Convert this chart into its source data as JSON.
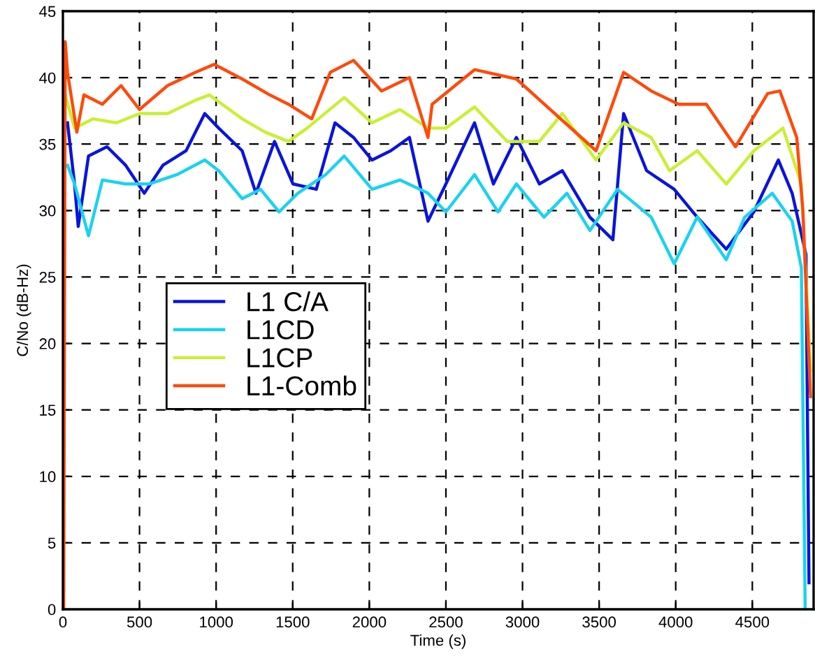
{
  "chart_data": {
    "type": "line",
    "xlabel": "Time (s)",
    "ylabel": "C/No (dB-Hz)",
    "xlim": [
      0,
      4900
    ],
    "ylim": [
      0,
      45
    ],
    "xticks": [
      0,
      500,
      1000,
      1500,
      2000,
      2500,
      3000,
      3500,
      4000,
      4500
    ],
    "yticks": [
      0,
      5,
      10,
      15,
      20,
      25,
      30,
      35,
      40,
      45
    ],
    "grid": true,
    "legend": "left",
    "line_style": "solid",
    "marker": "none",
    "series": [
      {
        "name": "L1 C/A",
        "color": "#0a14dc",
        "x": [
          30,
          76,
          100,
          167,
          288,
          410,
          531,
          652,
          804,
          926,
          1017,
          1170,
          1260,
          1381,
          1502,
          1654,
          1776,
          1897,
          2018,
          2140,
          2262,
          2383,
          2500,
          2687,
          2810,
          2960,
          3110,
          3260,
          3440,
          3590,
          3660,
          3810,
          3990,
          4140,
          4330,
          4510,
          4670,
          4760,
          4850,
          4870
        ],
        "values": [
          36.6,
          32,
          28.8,
          34.1,
          34.8,
          33.4,
          31.3,
          33.4,
          34.5,
          37.3,
          36.2,
          34.5,
          31.3,
          35.2,
          32,
          31.6,
          36.6,
          35.5,
          33.8,
          34.5,
          35.5,
          29.2,
          32,
          36.6,
          32,
          35.5,
          32,
          33,
          29.5,
          27.8,
          37.3,
          33,
          31.6,
          29.5,
          27.1,
          29.9,
          33.8,
          31.3,
          26.7,
          2
        ]
      },
      {
        "name": "L1CD",
        "color": "#1ad2f0",
        "x": [
          30,
          76,
          167,
          258,
          410,
          562,
          744,
          926,
          1017,
          1170,
          1290,
          1411,
          1533,
          1715,
          1836,
          2018,
          2200,
          2383,
          2500,
          2687,
          2840,
          2960,
          3140,
          3290,
          3440,
          3620,
          3840,
          3990,
          4140,
          4330,
          4450,
          4630,
          4760,
          4820,
          4845
        ],
        "values": [
          33.4,
          32,
          28.1,
          32.3,
          32,
          32,
          32.7,
          33.8,
          33,
          30.9,
          31.6,
          29.9,
          31.3,
          32.7,
          34.1,
          31.6,
          32.3,
          31.3,
          29.9,
          32.7,
          29.9,
          32,
          29.5,
          31.3,
          28.5,
          31.6,
          29.5,
          26,
          29.5,
          26.3,
          29.5,
          31.3,
          29.2,
          25.7,
          0
        ]
      },
      {
        "name": "L1CP",
        "color": "#c8f032",
        "x": [
          15,
          76,
          197,
          349,
          500,
          683,
          865,
          956,
          1170,
          1320,
          1472,
          1594,
          1836,
          2018,
          2200,
          2383,
          2500,
          2687,
          2900,
          3110,
          3260,
          3480,
          3660,
          3840,
          3960,
          4140,
          4330,
          4510,
          4700,
          4820,
          4880
        ],
        "values": [
          38.7,
          36.2,
          36.9,
          36.6,
          37.3,
          37.3,
          38.3,
          38.7,
          36.9,
          35.9,
          35.2,
          36.2,
          38.5,
          36.6,
          37.6,
          36.2,
          36.2,
          37.8,
          35.2,
          35.2,
          37.3,
          33.8,
          36.6,
          35.5,
          33,
          34.5,
          32,
          34.5,
          36.2,
          32,
          18
        ]
      },
      {
        "name": "L1-Comb",
        "color": "#ff4a0a",
        "x": [
          5,
          15,
          30,
          91,
          137,
          258,
          380,
          500,
          683,
          865,
          987,
          1170,
          1350,
          1472,
          1624,
          1745,
          1897,
          2080,
          2262,
          2383,
          2410,
          2687,
          2960,
          3480,
          3660,
          3840,
          4020,
          4200,
          4390,
          4600,
          4680,
          4790,
          4830,
          4880
        ],
        "values": [
          0,
          42.7,
          40.4,
          35.9,
          38.7,
          38,
          39.4,
          37.6,
          39.4,
          40.4,
          41,
          39.9,
          38.7,
          38,
          36.9,
          40.4,
          41.3,
          39,
          40,
          35.5,
          38,
          40.6,
          39.9,
          34.5,
          40.4,
          39,
          38,
          38,
          34.8,
          38.8,
          39,
          35.5,
          30,
          16
        ]
      }
    ]
  }
}
